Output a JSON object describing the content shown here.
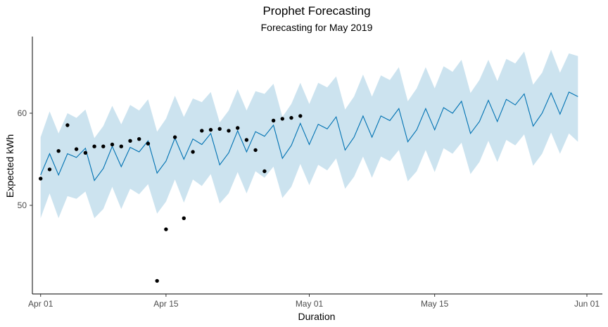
{
  "chart_data": {
    "type": "line",
    "title": "Prophet Forecasting",
    "subtitle": "Forecasting for May 2019",
    "xlabel": "Duration",
    "ylabel": "Expected kWh",
    "xlim": [
      "2019-03-31",
      "2019-06-01"
    ],
    "ylim": [
      40,
      68
    ],
    "x_ticks": [
      {
        "date": "2019-04-01",
        "label": "Apr 01"
      },
      {
        "date": "2019-04-15",
        "label": "Apr 15"
      },
      {
        "date": "2019-05-01",
        "label": "May 01"
      },
      {
        "date": "2019-05-15",
        "label": "May 15"
      },
      {
        "date": "2019-06-01",
        "label": "Jun 01"
      }
    ],
    "y_ticks": [
      {
        "value": 50,
        "label": "50"
      },
      {
        "value": 60,
        "label": "60"
      }
    ],
    "grid": false,
    "forecast": {
      "x": [
        "2019-04-01",
        "2019-04-02",
        "2019-04-03",
        "2019-04-04",
        "2019-04-05",
        "2019-04-06",
        "2019-04-07",
        "2019-04-08",
        "2019-04-09",
        "2019-04-10",
        "2019-04-11",
        "2019-04-12",
        "2019-04-13",
        "2019-04-14",
        "2019-04-15",
        "2019-04-16",
        "2019-04-17",
        "2019-04-18",
        "2019-04-19",
        "2019-04-20",
        "2019-04-21",
        "2019-04-22",
        "2019-04-23",
        "2019-04-24",
        "2019-04-25",
        "2019-04-26",
        "2019-04-27",
        "2019-04-28",
        "2019-04-29",
        "2019-04-30",
        "2019-05-01",
        "2019-05-02",
        "2019-05-03",
        "2019-05-04",
        "2019-05-05",
        "2019-05-06",
        "2019-05-07",
        "2019-05-08",
        "2019-05-09",
        "2019-05-10",
        "2019-05-11",
        "2019-05-12",
        "2019-05-13",
        "2019-05-14",
        "2019-05-15",
        "2019-05-16",
        "2019-05-17",
        "2019-05-18",
        "2019-05-19",
        "2019-05-20",
        "2019-05-21",
        "2019-05-22",
        "2019-05-23",
        "2019-05-24",
        "2019-05-25",
        "2019-05-26",
        "2019-05-27",
        "2019-05-28",
        "2019-05-29",
        "2019-05-30",
        "2019-05-31"
      ],
      "yhat": [
        53.3,
        55.6,
        53.3,
        55.6,
        55.2,
        56.2,
        52.7,
        54.0,
        56.4,
        54.2,
        56.3,
        55.8,
        57.0,
        53.5,
        54.8,
        57.3,
        55.0,
        57.2,
        56.6,
        57.8,
        54.4,
        55.7,
        58.1,
        55.8,
        58.0,
        57.5,
        58.7,
        55.1,
        56.5,
        58.9,
        56.6,
        58.8,
        58.3,
        59.6,
        56.0,
        57.4,
        59.7,
        57.4,
        59.7,
        59.2,
        60.5,
        56.9,
        58.2,
        60.5,
        58.2,
        60.6,
        60.0,
        61.3,
        57.8,
        59.1,
        61.4,
        59.1,
        61.5,
        60.9,
        62.1,
        58.6,
        60.0,
        62.2,
        59.9,
        62.3,
        61.8
      ],
      "lower": [
        48.6,
        51.3,
        48.6,
        51.0,
        50.7,
        51.5,
        48.6,
        49.6,
        52.0,
        49.6,
        51.8,
        51.2,
        52.3,
        49.1,
        50.4,
        52.8,
        50.3,
        52.8,
        52.1,
        53.4,
        50.2,
        51.3,
        53.6,
        51.3,
        53.7,
        53.0,
        54.2,
        50.8,
        52.0,
        54.5,
        52.2,
        54.4,
        53.8,
        55.1,
        51.8,
        53.1,
        55.3,
        53.0,
        55.3,
        54.8,
        56.0,
        52.6,
        53.7,
        56.0,
        53.6,
        56.2,
        55.6,
        56.8,
        53.4,
        54.7,
        57.0,
        54.7,
        57.1,
        56.5,
        57.7,
        54.3,
        55.6,
        57.9,
        55.6,
        57.8,
        56.9
      ],
      "upper": [
        57.4,
        60.2,
        57.8,
        60.0,
        59.5,
        60.4,
        57.3,
        58.6,
        60.8,
        58.8,
        60.9,
        60.3,
        61.5,
        58.0,
        59.4,
        61.9,
        59.6,
        61.6,
        61.2,
        62.3,
        59.0,
        60.3,
        62.6,
        60.3,
        62.4,
        62.1,
        63.2,
        59.6,
        61.0,
        63.3,
        61.0,
        63.3,
        62.8,
        64.0,
        60.4,
        61.8,
        64.2,
        61.8,
        64.1,
        63.6,
        65.0,
        61.3,
        62.7,
        65.0,
        62.7,
        65.1,
        64.5,
        65.8,
        62.2,
        63.6,
        65.8,
        63.5,
        65.9,
        65.4,
        66.7,
        63.1,
        64.4,
        66.9,
        64.4,
        66.5,
        66.2
      ]
    },
    "actual": {
      "x": [
        "2019-04-01",
        "2019-04-02",
        "2019-04-03",
        "2019-04-04",
        "2019-04-05",
        "2019-04-06",
        "2019-04-07",
        "2019-04-08",
        "2019-04-09",
        "2019-04-10",
        "2019-04-11",
        "2019-04-12",
        "2019-04-13",
        "2019-04-14",
        "2019-04-15",
        "2019-04-16",
        "2019-04-17",
        "2019-04-18",
        "2019-04-19",
        "2019-04-20",
        "2019-04-21",
        "2019-04-22",
        "2019-04-23",
        "2019-04-24",
        "2019-04-25",
        "2019-04-26",
        "2019-04-27",
        "2019-04-28",
        "2019-04-29",
        "2019-04-30"
      ],
      "y": [
        52.9,
        53.9,
        55.9,
        58.7,
        56.1,
        55.7,
        56.4,
        56.4,
        56.6,
        56.4,
        57.0,
        57.2,
        56.7,
        41.8,
        47.4,
        57.4,
        48.6,
        55.8,
        58.1,
        58.2,
        58.3,
        58.1,
        58.4,
        57.1,
        56.0,
        53.7,
        59.2,
        59.4,
        59.5,
        59.7
      ]
    },
    "colors": {
      "band": "#cce3ef",
      "line": "#0072b2",
      "points": "#000000",
      "axis": "#000000",
      "tick_label": "#4d4d4d"
    }
  }
}
